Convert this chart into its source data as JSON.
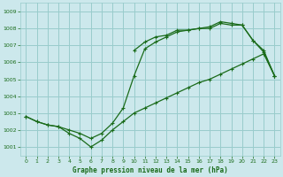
{
  "title": "Graphe pression niveau de la mer (hPa)",
  "background_color": "#cce8ec",
  "grid_color": "#99cccc",
  "line_color": "#1a6b1a",
  "xlim": [
    -0.5,
    23.5
  ],
  "ylim": [
    1000.5,
    1009.5
  ],
  "yticks": [
    1001,
    1002,
    1003,
    1004,
    1005,
    1006,
    1007,
    1008,
    1009
  ],
  "xticks": [
    0,
    1,
    2,
    3,
    4,
    5,
    6,
    7,
    8,
    9,
    10,
    11,
    12,
    13,
    14,
    15,
    16,
    17,
    18,
    19,
    20,
    21,
    22,
    23
  ],
  "series1_x": [
    0,
    1,
    2,
    3,
    4,
    5,
    6,
    7,
    8,
    9,
    10,
    11,
    12,
    13,
    14,
    15,
    16,
    17,
    18,
    19,
    20,
    21,
    22,
    23
  ],
  "series1_y": [
    1002.8,
    1002.5,
    1002.3,
    1002.2,
    1001.8,
    1001.5,
    1001.0,
    1001.4,
    1002.0,
    1002.5,
    1003.0,
    1003.3,
    1003.6,
    1003.9,
    1004.2,
    1004.5,
    1004.8,
    1005.0,
    1005.3,
    1005.6,
    1005.9,
    1006.2,
    1006.5,
    1005.2
  ],
  "series2_x": [
    0,
    1,
    2,
    3,
    4,
    5,
    6,
    7,
    8,
    9,
    10,
    11,
    12,
    13,
    14,
    15,
    16,
    17,
    18,
    19,
    20,
    21,
    22,
    23
  ],
  "series2_y": [
    1002.8,
    1002.5,
    1002.3,
    1002.2,
    1002.0,
    1001.8,
    1001.5,
    1001.8,
    1002.4,
    1003.3,
    1005.2,
    1006.8,
    1007.2,
    1007.5,
    1007.8,
    1007.9,
    1008.0,
    1008.0,
    1008.3,
    1008.2,
    1008.2,
    1007.3,
    1006.6,
    1005.2
  ],
  "series3_x": [
    10,
    11,
    12,
    13,
    14,
    15,
    16,
    17,
    18,
    19,
    20,
    21,
    22,
    23
  ],
  "series3_y": [
    1006.7,
    1007.2,
    1007.5,
    1007.6,
    1007.9,
    1007.9,
    1008.0,
    1008.1,
    1008.4,
    1008.3,
    1008.2,
    1007.3,
    1006.7,
    1005.2
  ]
}
